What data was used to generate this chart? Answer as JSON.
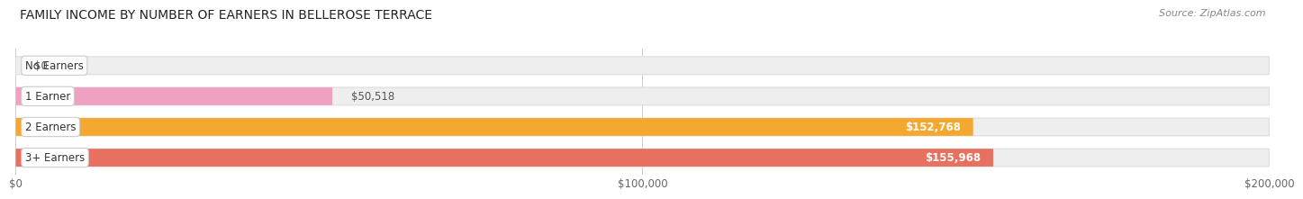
{
  "title": "FAMILY INCOME BY NUMBER OF EARNERS IN BELLEROSE TERRACE",
  "source": "Source: ZipAtlas.com",
  "categories": [
    "No Earners",
    "1 Earner",
    "2 Earners",
    "3+ Earners"
  ],
  "values": [
    0,
    50518,
    152768,
    155968
  ],
  "labels": [
    "$0",
    "$50,518",
    "$152,768",
    "$155,968"
  ],
  "bar_colors": [
    "#a8a8d8",
    "#f0a0c0",
    "#f5a830",
    "#e87060"
  ],
  "bar_bg_color": "#eeeeee",
  "xlim": [
    0,
    200000
  ],
  "xticks": [
    0,
    100000,
    200000
  ],
  "xtick_labels": [
    "$0",
    "$100,000",
    "$200,000"
  ],
  "title_fontsize": 10,
  "source_fontsize": 8,
  "label_fontsize": 8.5,
  "tick_fontsize": 8.5,
  "background_color": "#ffffff",
  "bar_height": 0.58,
  "label_inside_threshold": 60000
}
